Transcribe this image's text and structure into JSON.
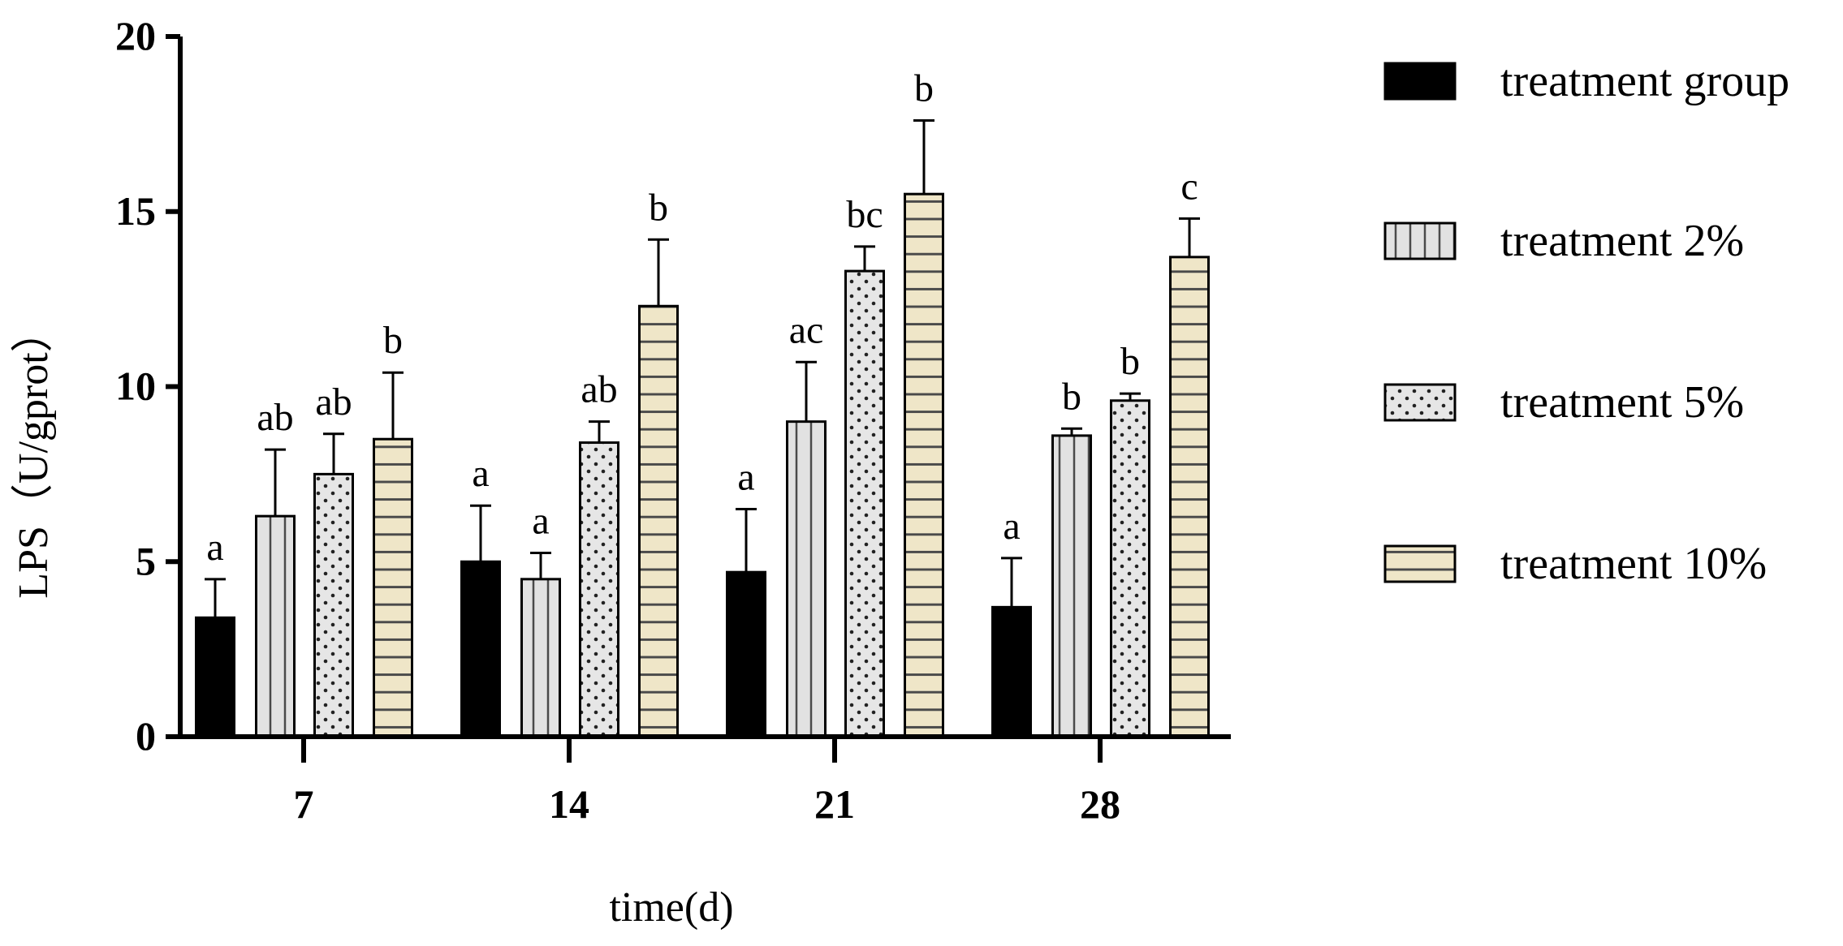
{
  "chart_data": {
    "type": "bar",
    "title": "",
    "xlabel": "time(d)",
    "ylabel": "LPS（U/gprot）",
    "ylim": [
      0,
      20
    ],
    "yticks": [
      "0",
      "5",
      "10",
      "15",
      "20"
    ],
    "categories": [
      "7",
      "14",
      "21",
      "28"
    ],
    "series": [
      {
        "name": "treatment group",
        "values": [
          3.4,
          5.0,
          4.7,
          3.7
        ],
        "errors": [
          1.1,
          1.6,
          1.8,
          1.4
        ],
        "labels": [
          "a",
          "a",
          "a",
          "a"
        ],
        "fill": "#000000",
        "pattern": "solid"
      },
      {
        "name": "treatment 2%",
        "values": [
          6.3,
          4.5,
          9.0,
          8.6
        ],
        "errors": [
          1.9,
          0.75,
          1.7,
          0.2
        ],
        "labels": [
          "ab",
          "a",
          "ac",
          "b"
        ],
        "fill": "#e2e2e2",
        "pattern": "vertical"
      },
      {
        "name": "treatment 5%",
        "values": [
          7.5,
          8.4,
          13.3,
          9.6
        ],
        "errors": [
          1.15,
          0.6,
          0.7,
          0.2
        ],
        "labels": [
          "ab",
          "ab",
          "bc",
          "b"
        ],
        "fill": "#e2e2e2",
        "pattern": "dots"
      },
      {
        "name": "treatment 10%",
        "values": [
          8.5,
          12.3,
          15.5,
          13.7
        ],
        "errors": [
          1.9,
          1.9,
          2.1,
          1.1
        ],
        "labels": [
          "b",
          "b",
          "b",
          "c"
        ],
        "fill": "#efe6c8",
        "pattern": "horizontal"
      }
    ]
  }
}
